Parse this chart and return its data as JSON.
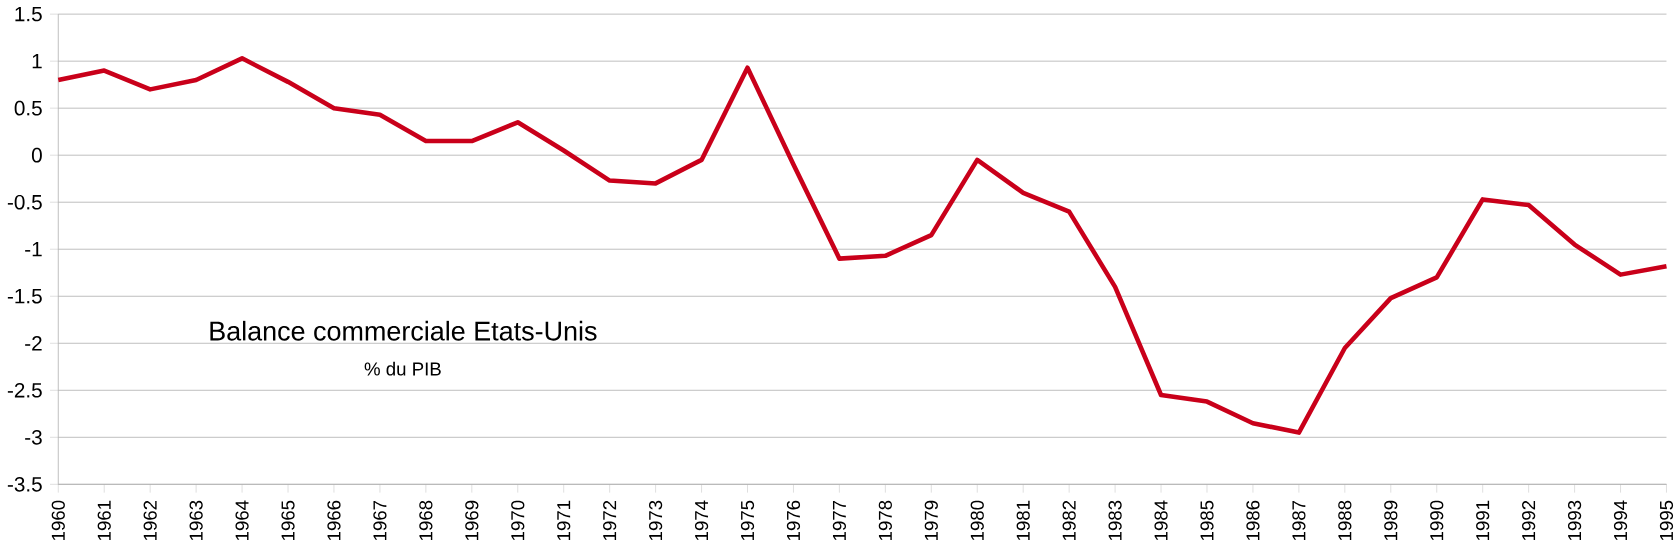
{
  "chart_data": {
    "type": "line",
    "title": "Balance commerciale Etats-Unis",
    "subtitle": "% du PIB",
    "categories": [
      "1960",
      "1961",
      "1962",
      "1963",
      "1964",
      "1965",
      "1966",
      "1967",
      "1968",
      "1969",
      "1970",
      "1971",
      "1972",
      "1973",
      "1974",
      "1975",
      "1976",
      "1977",
      "1978",
      "1979",
      "1980",
      "1981",
      "1982",
      "1983",
      "1984",
      "1985",
      "1986",
      "1987",
      "1988",
      "1989",
      "1990",
      "1991",
      "1992",
      "1993",
      "1994",
      "1995"
    ],
    "series": [
      {
        "color": "#c9001a",
        "values": [
          0.8,
          0.9,
          0.7,
          0.8,
          1.03,
          0.78,
          0.5,
          0.43,
          0.15,
          0.15,
          0.35,
          0.05,
          -0.27,
          -0.3,
          -0.05,
          0.93,
          -0.1,
          -1.1,
          -1.07,
          -0.85,
          -0.05,
          -0.4,
          -0.6,
          -1.4,
          -2.55,
          -2.62,
          -2.85,
          -2.95,
          -2.05,
          -1.52,
          -1.3,
          -0.47,
          -0.53,
          -0.95,
          -1.27,
          -1.18
        ]
      }
    ],
    "ylim": [
      -3.5,
      1.5
    ],
    "yticks": [
      -3.5,
      -3,
      -2.5,
      -2,
      -1.5,
      -1,
      -0.5,
      0,
      0.5,
      1,
      1.5
    ],
    "grid": "y",
    "legend": false,
    "marker": "none",
    "line_style": "solid"
  }
}
